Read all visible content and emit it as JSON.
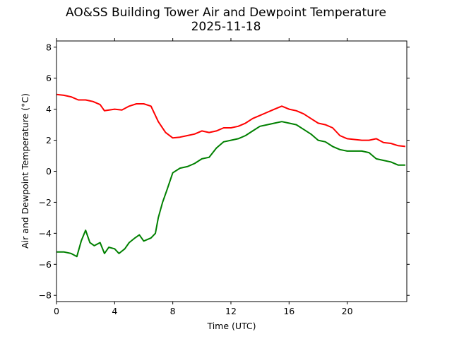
{
  "chart_data": {
    "type": "line",
    "title": "AO&SS Building Tower Air and Dewpoint Temperature",
    "subtitle": "2025-11-18",
    "xlabel": "Time (UTC)",
    "ylabel": "Air and Dewpoint Temperature (°C)",
    "xlim": [
      0,
      24.1
    ],
    "ylim": [
      -8.4,
      8.4
    ],
    "xticks": [
      0,
      4,
      8,
      12,
      16,
      20
    ],
    "yticks": [
      -8,
      -6,
      -4,
      -2,
      0,
      2,
      4,
      6,
      8
    ],
    "grid": false,
    "series": [
      {
        "color": "#ff0000",
        "x": [
          0,
          0.5,
          1,
          1.5,
          2,
          2.5,
          3,
          3.3,
          4,
          4.5,
          5,
          5.5,
          6,
          6.5,
          7,
          7.5,
          8,
          8.5,
          9,
          9.5,
          10,
          10.5,
          11,
          11.5,
          12,
          12.5,
          13,
          13.5,
          14,
          14.5,
          15,
          15.5,
          16,
          16.5,
          17,
          17.5,
          18,
          18.5,
          19,
          19.5,
          20,
          20.5,
          21,
          21.5,
          22,
          22.5,
          23,
          23.5,
          24
        ],
        "y": [
          4.95,
          4.9,
          4.8,
          4.6,
          4.6,
          4.5,
          4.3,
          3.9,
          4.0,
          3.95,
          4.2,
          4.35,
          4.35,
          4.2,
          3.2,
          2.5,
          2.15,
          2.2,
          2.3,
          2.4,
          2.6,
          2.5,
          2.6,
          2.8,
          2.8,
          2.9,
          3.1,
          3.4,
          3.6,
          3.8,
          4.0,
          4.2,
          4.0,
          3.9,
          3.7,
          3.4,
          3.1,
          3.0,
          2.8,
          2.3,
          2.1,
          2.05,
          2.0,
          2.0,
          2.1,
          1.85,
          1.8,
          1.65,
          1.6
        ]
      },
      {
        "color": "#008000",
        "x": [
          0,
          0.5,
          1,
          1.4,
          1.7,
          2,
          2.3,
          2.6,
          3,
          3.3,
          3.6,
          4,
          4.3,
          4.7,
          5,
          5.4,
          5.7,
          6,
          6.5,
          6.8,
          7,
          7.3,
          7.6,
          8,
          8.5,
          9,
          9.5,
          10,
          10.5,
          11,
          11.5,
          12,
          12.5,
          13,
          13.5,
          14,
          14.5,
          15,
          15.5,
          16,
          16.5,
          17,
          17.5,
          18,
          18.5,
          19,
          19.5,
          20,
          20.5,
          21,
          21.5,
          22,
          22.5,
          23,
          23.5,
          24
        ],
        "y": [
          -5.2,
          -5.2,
          -5.3,
          -5.5,
          -4.5,
          -3.8,
          -4.6,
          -4.8,
          -4.6,
          -5.3,
          -4.9,
          -5.0,
          -5.3,
          -5.0,
          -4.6,
          -4.3,
          -4.1,
          -4.5,
          -4.3,
          -4.0,
          -3.0,
          -2.0,
          -1.2,
          -0.1,
          0.2,
          0.3,
          0.5,
          0.8,
          0.9,
          1.5,
          1.9,
          2.0,
          2.1,
          2.3,
          2.6,
          2.9,
          3.0,
          3.1,
          3.2,
          3.1,
          3.0,
          2.7,
          2.4,
          2.0,
          1.9,
          1.6,
          1.4,
          1.3,
          1.3,
          1.3,
          1.2,
          0.8,
          0.7,
          0.6,
          0.4,
          0.4
        ]
      }
    ]
  }
}
